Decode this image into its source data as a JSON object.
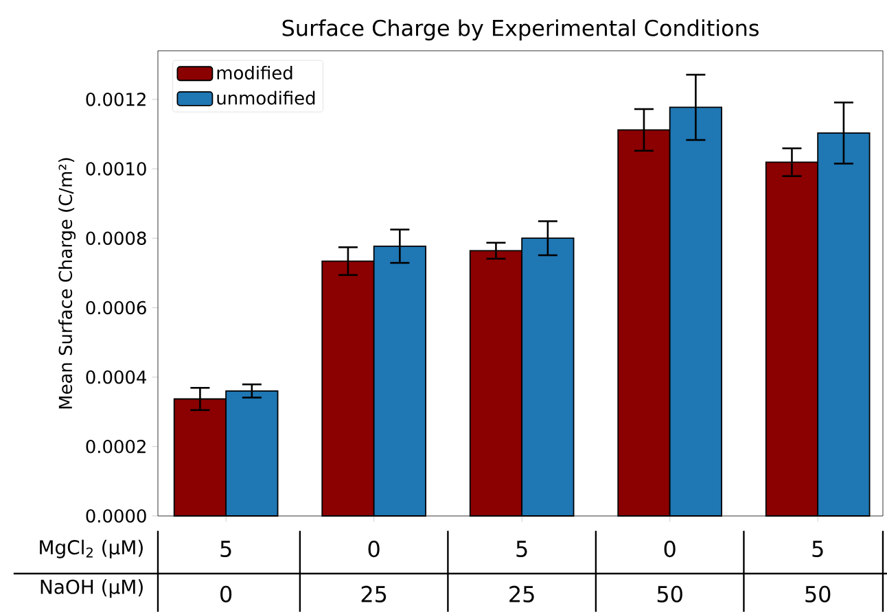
{
  "chart_data": {
    "type": "bar",
    "title": "Surface Charge by Experimental Conditions",
    "ylabel": "Mean Surface Charge (C/m²)",
    "categories": [
      "5",
      "0",
      "5",
      "0",
      "5"
    ],
    "annotations": [
      "MgCl$_{2}$ (µM)",
      "NaOH (µM)",
      "0",
      "25",
      "25",
      "50",
      "50"
    ],
    "series": [
      {
        "name": "modified",
        "color": "#8b0000",
        "values": [
          0.000337,
          0.000734,
          0.000764,
          0.001112,
          0.001019
        ],
        "errors": [
          3.2e-05,
          4e-05,
          2.3e-05,
          6e-05,
          4e-05
        ]
      },
      {
        "name": "unmodified",
        "color": "#1f77b4",
        "values": [
          0.00036,
          0.000777,
          0.0008,
          0.001177,
          0.001103
        ],
        "errors": [
          1.9e-05,
          4.8e-05,
          4.9e-05,
          9.4e-05,
          8.8e-05
        ]
      }
    ],
    "ylim": [
      0,
      0.00134
    ],
    "yticks": [
      {
        "value": 0,
        "label": "0.0000"
      },
      {
        "value": 0.0002,
        "label": "0.0002"
      },
      {
        "value": 0.0004,
        "label": "0.0004"
      },
      {
        "value": 0.0006,
        "label": "0.0006"
      },
      {
        "value": 0.0008,
        "label": "0.0008"
      },
      {
        "value": 0.001,
        "label": "0.0010"
      },
      {
        "value": 0.0012,
        "label": "0.0012"
      }
    ],
    "legend": "top left",
    "grid": false
  }
}
